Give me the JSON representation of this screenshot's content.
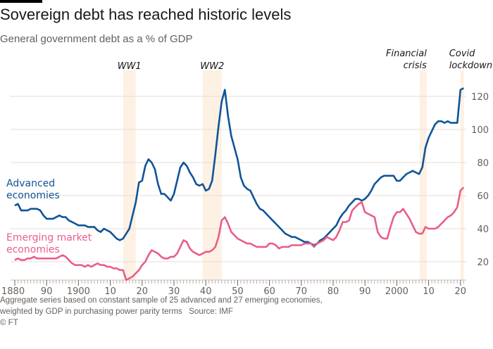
{
  "header": {
    "title": "Sovereign debt has reached historic levels",
    "subtitle": "General government debt as a % of GDP"
  },
  "footer": {
    "note_line1": "Aggregate series based on constant sample of 25 advanced and 27 emerging economies,",
    "note_line2": "weighted by GDP in purchasing power parity terms",
    "source": "Source: IMF",
    "copyright": "© FT"
  },
  "colors": {
    "advanced": "#0f5499",
    "emerging": "#e95d8c",
    "band": "#fdf1e4",
    "grid": "#e9ddd2"
  },
  "chart_data": {
    "type": "line",
    "title": "Sovereign debt has reached historic levels",
    "ylabel": "General government debt as a % of GDP",
    "xlim": [
      1880,
      2021
    ],
    "ylim": [
      9,
      128
    ],
    "grid": true,
    "y_ticks": [
      20,
      40,
      60,
      80,
      100,
      120
    ],
    "x_ticks": [
      {
        "year": 1880,
        "label": "1880"
      },
      {
        "year": 1890,
        "label": "90"
      },
      {
        "year": 1900,
        "label": "1900"
      },
      {
        "year": 1910,
        "label": "10"
      },
      {
        "year": 1920,
        "label": "20"
      },
      {
        "year": 1930,
        "label": "30"
      },
      {
        "year": 1940,
        "label": "40"
      },
      {
        "year": 1950,
        "label": "50"
      },
      {
        "year": 1960,
        "label": "60"
      },
      {
        "year": 1970,
        "label": "70"
      },
      {
        "year": 1980,
        "label": "80"
      },
      {
        "year": 1990,
        "label": "90"
      },
      {
        "year": 2000,
        "label": "2000"
      },
      {
        "year": 2010,
        "label": "10"
      },
      {
        "year": 2020,
        "label": "20"
      }
    ],
    "bands": [
      {
        "label_lines": [
          "WW1"
        ],
        "from": 1914,
        "to": 1918
      },
      {
        "label_lines": [
          "WW2"
        ],
        "from": 1939,
        "to": 1945
      },
      {
        "label_lines": [
          "Financial",
          "crisis"
        ],
        "from": 2007.2,
        "to": 2009.4
      },
      {
        "label_lines": [
          "Covid",
          "lockdown"
        ],
        "from": 2020,
        "to": 2021
      }
    ],
    "start_year": 1880,
    "series": [
      {
        "name": "Advanced economies",
        "label_lines": [
          "Advanced",
          "economies"
        ],
        "values": [
          54,
          55,
          51,
          51,
          51,
          52,
          52,
          52,
          51,
          48,
          46,
          46,
          46,
          47,
          48,
          47,
          47,
          45,
          44,
          43,
          42,
          42,
          42,
          41,
          41,
          41,
          39,
          38,
          40,
          39,
          38,
          36,
          34,
          33,
          34,
          37,
          40,
          48,
          56,
          68,
          69,
          78,
          82,
          80,
          76,
          67,
          61,
          61,
          59,
          57,
          61,
          69,
          77,
          80,
          78,
          74,
          71,
          67,
          66,
          67,
          63,
          64,
          69,
          85,
          102,
          117,
          124,
          108,
          96,
          89,
          82,
          71,
          66,
          64,
          63,
          59,
          55,
          52,
          51,
          49,
          47,
          45,
          43,
          41,
          39,
          37,
          36,
          35,
          35,
          34,
          33,
          32,
          32,
          31,
          30,
          31,
          33,
          34,
          36,
          38,
          40,
          42,
          46,
          49,
          51,
          54,
          56,
          58,
          58,
          57,
          58,
          60,
          63,
          67,
          69,
          71,
          72,
          72,
          72,
          72,
          69,
          69,
          71,
          73,
          74,
          75,
          74,
          73,
          77,
          89,
          95,
          99,
          103,
          105,
          105,
          104,
          105,
          104,
          104,
          104,
          124,
          125
        ]
      },
      {
        "name": "Emerging market economies",
        "label_lines": [
          "Emerging market",
          "economies"
        ],
        "values": [
          21,
          22,
          21,
          21,
          22,
          22,
          23,
          22,
          22,
          22,
          22,
          22,
          22,
          22,
          23,
          24,
          23,
          21,
          19,
          18,
          18,
          18,
          17,
          18,
          17,
          18,
          19,
          18,
          18,
          17,
          17,
          16,
          16,
          15,
          15,
          9,
          10,
          11,
          13,
          15,
          18,
          20,
          24,
          27,
          26,
          25,
          23,
          22,
          22,
          23,
          23,
          25,
          29,
          33,
          32,
          28,
          26,
          25,
          24,
          25,
          26,
          26,
          27,
          29,
          35,
          45,
          47,
          43,
          38,
          36,
          34,
          33,
          32,
          31,
          31,
          30,
          29,
          29,
          29,
          29,
          31,
          31,
          30,
          28,
          29,
          29,
          29,
          30,
          30,
          30,
          30,
          31,
          31,
          31,
          29,
          31,
          32,
          33,
          35,
          34,
          33,
          35,
          39,
          44,
          44,
          45,
          51,
          53,
          55,
          56,
          50,
          49,
          48,
          47,
          38,
          35,
          34,
          34,
          41,
          47,
          50,
          50,
          52,
          49,
          46,
          42,
          38,
          37,
          37,
          41,
          40,
          40,
          40,
          41,
          43,
          45,
          47,
          48,
          50,
          53,
          63,
          65
        ]
      }
    ]
  }
}
